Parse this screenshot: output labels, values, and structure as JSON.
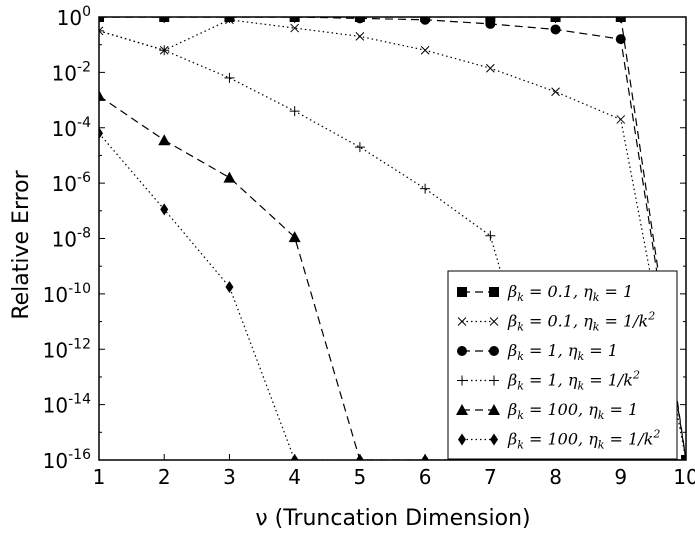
{
  "chart_data": {
    "type": "line",
    "title": "",
    "xlabel": "ν (Truncation Dimension)",
    "ylabel": "Relative Error",
    "xlim": [
      1,
      10
    ],
    "ylim_log10": [
      -16,
      0
    ],
    "yscale": "log",
    "grid": false,
    "legend_position": "lower-right",
    "x_ticks": [
      1,
      2,
      3,
      4,
      5,
      6,
      7,
      8,
      9,
      10
    ],
    "y_ticks": [
      {
        "base": "10",
        "exp": "0"
      },
      {
        "base": "10",
        "exp": "-2"
      },
      {
        "base": "10",
        "exp": "-4"
      },
      {
        "base": "10",
        "exp": "-6"
      },
      {
        "base": "10",
        "exp": "-8"
      },
      {
        "base": "10",
        "exp": "-10"
      },
      {
        "base": "10",
        "exp": "-12"
      },
      {
        "base": "10",
        "exp": "-14"
      },
      {
        "base": "10",
        "exp": "-16"
      }
    ],
    "series": [
      {
        "name": "β_k = 0.1, η_k = 1",
        "label_main": "β",
        "label_sub": "k",
        "label_rest": " = 0.1, η",
        "label_sub2": "k",
        "label_end": " = 1",
        "label_sup": "",
        "marker": "square",
        "line": "dashed",
        "x": [
          1,
          2,
          3,
          4,
          5,
          6,
          7,
          8,
          9,
          10
        ],
        "log10y": [
          0,
          0,
          0,
          0,
          0,
          0,
          0,
          0,
          0,
          -16
        ]
      },
      {
        "name": "β_k = 0.1, η_k = 1/k^2",
        "label_main": "β",
        "label_sub": "k",
        "label_rest": " = 0.1, η",
        "label_sub2": "k",
        "label_end": " = 1/k",
        "label_sup": "2",
        "marker": "x",
        "line": "dotted",
        "x": [
          1,
          2,
          3,
          4,
          5,
          6,
          7,
          8,
          9,
          10
        ],
        "log10y": [
          -0.5,
          -1.2,
          -0.1,
          -0.4,
          -0.7,
          -1.2,
          -1.85,
          -2.7,
          -3.7,
          -16
        ]
      },
      {
        "name": "β_k = 1, η_k = 1",
        "label_main": "β",
        "label_sub": "k",
        "label_rest": " = 1, η",
        "label_sub2": "k",
        "label_end": " = 1",
        "label_sup": "",
        "marker": "circle",
        "line": "dashed",
        "x": [
          1,
          2,
          3,
          4,
          5,
          6,
          7,
          8,
          9,
          10
        ],
        "log10y": [
          0,
          0,
          0,
          0,
          -0.05,
          -0.1,
          -0.25,
          -0.45,
          -0.8,
          -16
        ]
      },
      {
        "name": "β_k = 1, η_k = 1/k^2",
        "label_main": "β",
        "label_sub": "k",
        "label_rest": " = 1, η",
        "label_sub2": "k",
        "label_end": " = 1/k",
        "label_sup": "2",
        "marker": "plus",
        "line": "dotted",
        "x": [
          1,
          2,
          3,
          4,
          5,
          6,
          7,
          8,
          9,
          10
        ],
        "log10y": [
          -0.5,
          -1.2,
          -2.2,
          -3.4,
          -4.7,
          -6.2,
          -7.9,
          -16,
          -16,
          -16
        ]
      },
      {
        "name": "β_k = 100, η_k = 1",
        "label_main": "β",
        "label_sub": "k",
        "label_rest": " = 100, η",
        "label_sub2": "k",
        "label_end": " = 1",
        "label_sup": "",
        "marker": "triangle",
        "line": "dashed",
        "x": [
          1,
          2,
          3,
          4,
          5,
          6,
          7,
          8,
          9,
          10
        ],
        "log10y": [
          -2.85,
          -4.45,
          -5.8,
          -7.95,
          -16,
          -16,
          -16,
          -16,
          -16,
          -16
        ]
      },
      {
        "name": "β_k = 100, η_k = 1/k^2",
        "label_main": "β",
        "label_sub": "k",
        "label_rest": " = 100, η",
        "label_sub2": "k",
        "label_end": " = 1/k",
        "label_sup": "2",
        "marker": "diamond",
        "line": "dotted",
        "x": [
          1,
          2,
          3,
          4,
          5,
          6,
          7,
          8,
          9,
          10
        ],
        "log10y": [
          -4.2,
          -6.95,
          -9.75,
          -16,
          -16,
          -16,
          -16,
          -16,
          -16,
          -16
        ]
      }
    ]
  }
}
